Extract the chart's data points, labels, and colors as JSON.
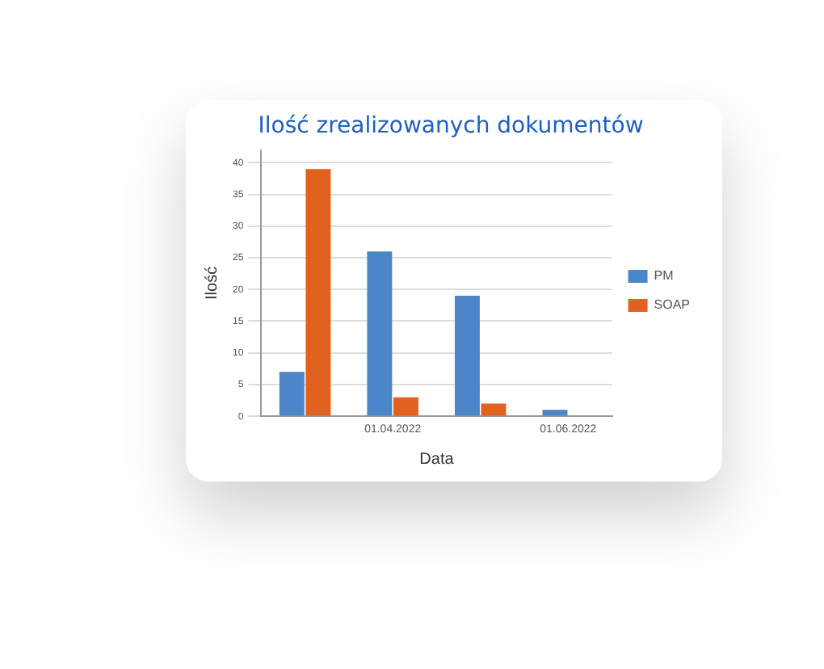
{
  "chart_data": {
    "type": "bar",
    "title": "Ilość zrealizowanych dokumentów",
    "xlabel": "Data",
    "ylabel": "Ilość",
    "categories": [
      null,
      "01.04.2022",
      null,
      "01.06.2022"
    ],
    "series": [
      {
        "name": "PM",
        "color": "#4a86c8",
        "values": [
          7,
          26,
          19,
          1
        ]
      },
      {
        "name": "SOAP",
        "color": "#e0621e",
        "values": [
          39,
          3,
          2,
          0
        ]
      }
    ],
    "ylim": [
      0,
      42
    ],
    "yticks": [
      0,
      5,
      10,
      15,
      20,
      25,
      30,
      35,
      40
    ],
    "grid": "y",
    "legend": "right"
  }
}
